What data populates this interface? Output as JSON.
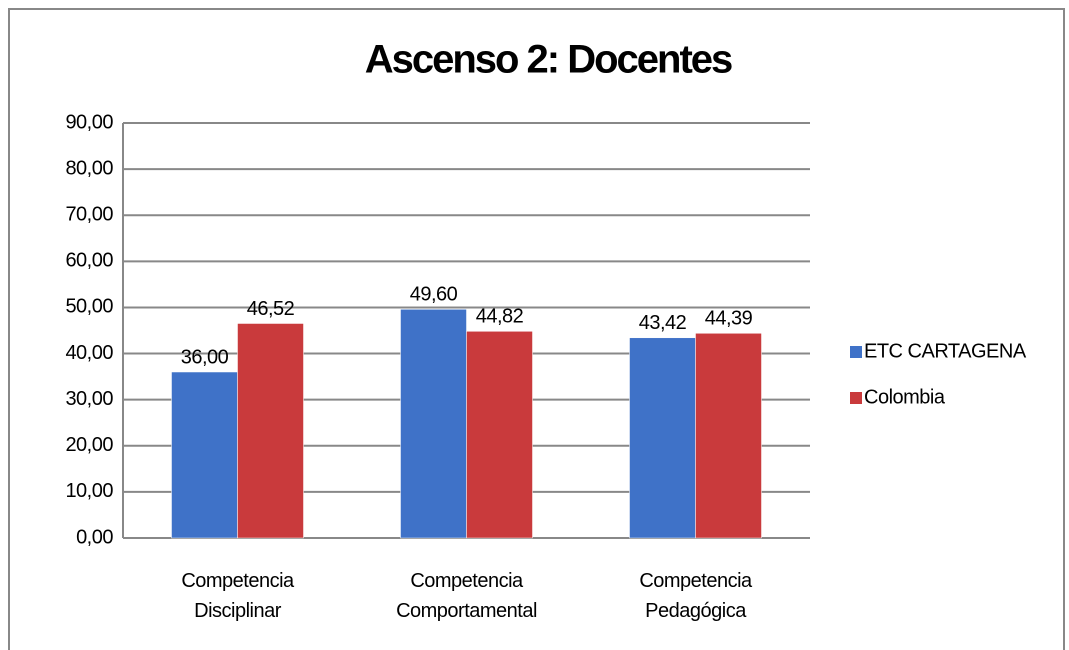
{
  "chart_data": {
    "type": "bar",
    "title": "Ascenso 2: Docentes",
    "categories": [
      "Competencia Disciplinar",
      "Competencia Comportamental",
      "Competencia Pedagógica"
    ],
    "series": [
      {
        "name": "ETC CARTAGENA",
        "color": "#3f72c8",
        "values": [
          36.0,
          49.6,
          43.42
        ],
        "value_labels": [
          "36,00",
          "49,60",
          "43,42"
        ]
      },
      {
        "name": "Colombia",
        "color": "#c93a3c",
        "values": [
          46.52,
          44.82,
          44.39
        ],
        "value_labels": [
          "46,52",
          "44,82",
          "44,39"
        ]
      }
    ],
    "ylim": [
      0,
      90
    ],
    "yticks": [
      {
        "value": 0,
        "label": "0,00"
      },
      {
        "value": 10,
        "label": "10,00"
      },
      {
        "value": 20,
        "label": "20,00"
      },
      {
        "value": 30,
        "label": "30,00"
      },
      {
        "value": 40,
        "label": "40,00"
      },
      {
        "value": 50,
        "label": "50,00"
      },
      {
        "value": 60,
        "label": "60,00"
      },
      {
        "value": 70,
        "label": "70,00"
      },
      {
        "value": 80,
        "label": "80,00"
      },
      {
        "value": 90,
        "label": "90,00"
      }
    ],
    "grid": true,
    "legend": "right"
  }
}
